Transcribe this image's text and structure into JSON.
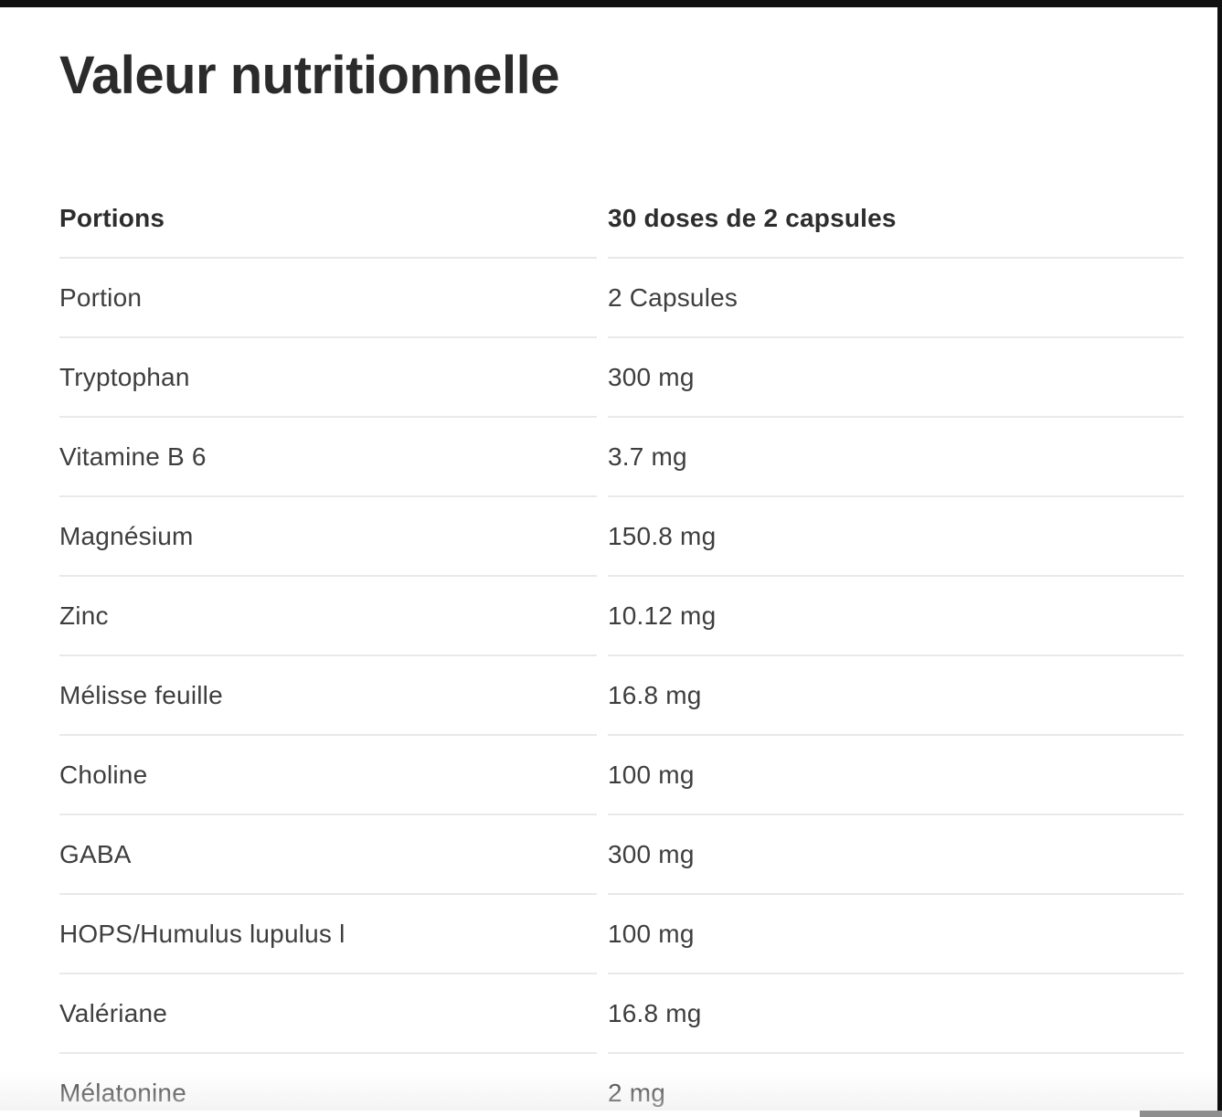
{
  "page": {
    "title": "Valeur nutritionnelle"
  },
  "table": {
    "header": {
      "label": "Portions",
      "value": "30 doses de 2 capsules"
    },
    "rows": [
      {
        "label": "Portion",
        "value": "2 Capsules"
      },
      {
        "label": "Tryptophan",
        "value": "300 mg"
      },
      {
        "label": "Vitamine B 6",
        "value": "3.7 mg"
      },
      {
        "label": "Magnésium",
        "value": "150.8 mg"
      },
      {
        "label": "Zinc",
        "value": "10.12 mg"
      },
      {
        "label": "Mélisse feuille",
        "value": "16.8 mg"
      },
      {
        "label": "Choline",
        "value": "100 mg"
      },
      {
        "label": "GABA",
        "value": "300 mg"
      },
      {
        "label": "HOPS/Humulus lupulus l",
        "value": "100 mg"
      },
      {
        "label": "Valériane",
        "value": "16.8 mg"
      },
      {
        "label": "Mélatonine",
        "value": "2 mg"
      }
    ]
  },
  "colors": {
    "title_text": "#2b2b2b",
    "header_text": "#2d2d2d",
    "body_text": "#3e3e3e",
    "divider": "#e9e9e9",
    "frame_bar": "#101010",
    "scroll_thumb": "#8e8e8e",
    "background": "#ffffff"
  }
}
